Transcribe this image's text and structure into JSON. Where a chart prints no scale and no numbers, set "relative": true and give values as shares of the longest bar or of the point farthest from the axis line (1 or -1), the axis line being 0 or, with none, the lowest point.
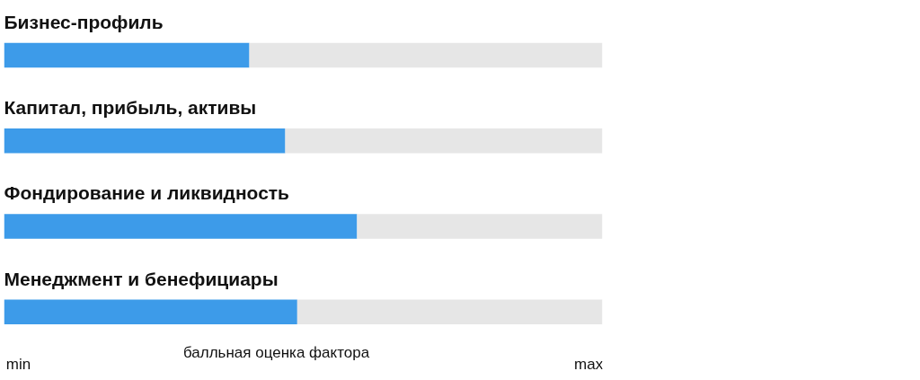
{
  "chart_data": {
    "type": "bar",
    "orientation": "horizontal",
    "stacked": true,
    "relative": true,
    "categories": [
      "Бизнес-профиль",
      "Капитал, прибыль, активы",
      "Фондирование и ликвидность",
      "Менеджмент и бенефициары"
    ],
    "series": [
      {
        "color": "#3d9be9",
        "values": [
          0.41,
          0.47,
          0.59,
          0.49
        ]
      },
      {
        "color": "#e6e6e6",
        "values": [
          0.59,
          0.53,
          0.41,
          0.51
        ]
      }
    ],
    "annotations": [
      "min",
      "max"
    ],
    "xlabel": "балльная оценка фактора"
  }
}
